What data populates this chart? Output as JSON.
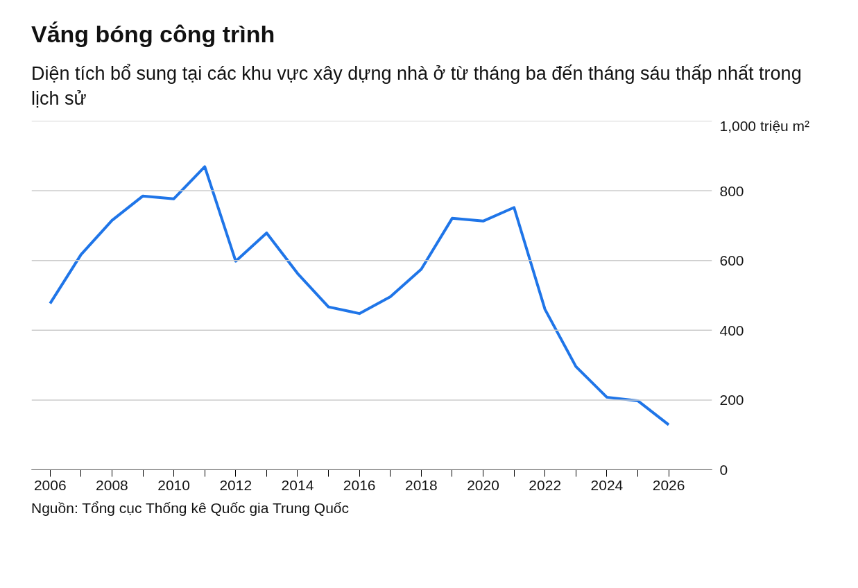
{
  "chart_data": {
    "type": "line",
    "title": "Vắng bóng công trình",
    "subtitle": "Diện tích bổ sung tại các khu vực xây dựng nhà ở từ tháng ba đến tháng sáu thấp nhất trong lịch sử",
    "annotations": [
      "Nguồn: Tổng cục Thống kê Quốc gia Trung Quốc"
    ],
    "x": [
      2006,
      2007,
      2008,
      2009,
      2010,
      2011,
      2012,
      2013,
      2014,
      2015,
      2016,
      2017,
      2018,
      2019,
      2020,
      2021,
      2022,
      2023,
      2024,
      2025,
      2026
    ],
    "series": [
      {
        "color": "#1f75e8",
        "values": [
          477,
          617,
          715,
          785,
          777,
          869,
          598,
          679,
          563,
          467,
          448,
          496,
          575,
          721,
          713,
          752,
          460,
          296,
          208,
          198,
          129
        ]
      }
    ],
    "xlim": [
      2005.4,
      2027.4
    ],
    "xticks": [
      2006,
      {
        "value": 2007,
        "label": null
      },
      2008,
      {
        "value": 2009,
        "label": null
      },
      2010,
      {
        "value": 2011,
        "label": null
      },
      2012,
      {
        "value": 2013,
        "label": null
      },
      2014,
      {
        "value": 2015,
        "label": null
      },
      2016,
      {
        "value": 2017,
        "label": null
      },
      2018,
      {
        "value": 2019,
        "label": null
      },
      2020,
      {
        "value": 2021,
        "label": null
      },
      2022,
      {
        "value": 2023,
        "label": null
      },
      2024,
      {
        "value": 2025,
        "label": null
      },
      2026
    ],
    "ylim": [
      0,
      1000
    ],
    "yticks": [
      0,
      200,
      400,
      600,
      800,
      {
        "value": 1000,
        "label": "1,000 triệu m²"
      }
    ],
    "grid": "y",
    "marker": "none",
    "line_style": "solid"
  }
}
